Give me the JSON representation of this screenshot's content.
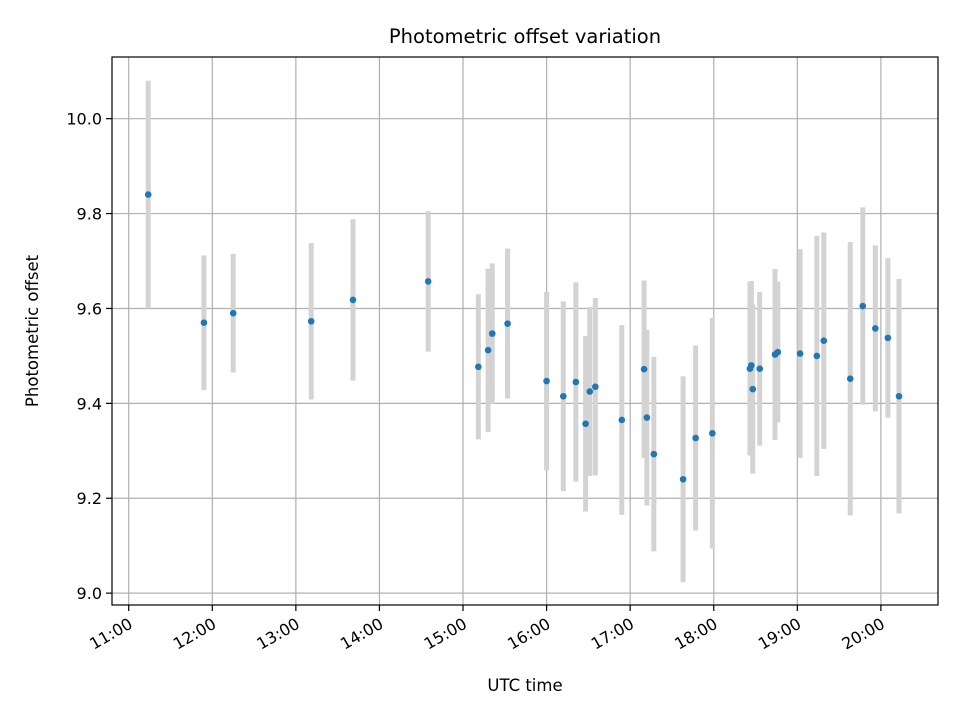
{
  "chart_data": {
    "type": "scatter",
    "title": "Photometric offset variation",
    "xlabel": "UTC time",
    "ylabel": "Photometric offset",
    "xlim": [
      "10:48",
      "20:41"
    ],
    "ylim": [
      8.975,
      10.13
    ],
    "x_ticks": [
      "11:00",
      "12:00",
      "13:00",
      "14:00",
      "15:00",
      "16:00",
      "17:00",
      "18:00",
      "19:00",
      "20:00"
    ],
    "y_ticks": [
      "9.0",
      "9.2",
      "9.4",
      "9.6",
      "9.8",
      "10.0"
    ],
    "grid": true,
    "colors": {
      "points": "#1f77b4",
      "errorbars": "#d3d3d3",
      "grid": "#b0b0b0"
    },
    "series": [
      {
        "points": [
          {
            "x": "11:14",
            "y": 9.84,
            "yerr": 0.24
          },
          {
            "x": "11:54",
            "y": 9.57,
            "yerr": 0.142
          },
          {
            "x": "12:15",
            "y": 9.59,
            "yerr": 0.125
          },
          {
            "x": "13:11",
            "y": 9.573,
            "yerr": 0.165
          },
          {
            "x": "13:41",
            "y": 9.618,
            "yerr": 0.17
          },
          {
            "x": "14:35",
            "y": 9.657,
            "yerr": 0.148
          },
          {
            "x": "15:11",
            "y": 9.477,
            "yerr": 0.153
          },
          {
            "x": "15:18",
            "y": 9.512,
            "yerr": 0.172
          },
          {
            "x": "15:21",
            "y": 9.547,
            "yerr": 0.148
          },
          {
            "x": "15:32",
            "y": 9.568,
            "yerr": 0.158
          },
          {
            "x": "16:00",
            "y": 9.447,
            "yerr": 0.188
          },
          {
            "x": "16:12",
            "y": 9.415,
            "yerr": 0.2
          },
          {
            "x": "16:21",
            "y": 9.445,
            "yerr": 0.21
          },
          {
            "x": "16:28",
            "y": 9.357,
            "yerr": 0.185
          },
          {
            "x": "16:31",
            "y": 9.425,
            "yerr": 0.178
          },
          {
            "x": "16:35",
            "y": 9.435,
            "yerr": 0.187
          },
          {
            "x": "16:54",
            "y": 9.365,
            "yerr": 0.2
          },
          {
            "x": "17:10",
            "y": 9.472,
            "yerr": 0.187
          },
          {
            "x": "17:12",
            "y": 9.37,
            "yerr": 0.185
          },
          {
            "x": "17:17",
            "y": 9.293,
            "yerr": 0.205
          },
          {
            "x": "17:38",
            "y": 9.24,
            "yerr": 0.217
          },
          {
            "x": "17:47",
            "y": 9.327,
            "yerr": 0.195
          },
          {
            "x": "17:59",
            "y": 9.337,
            "yerr": 0.243
          },
          {
            "x": "18:26",
            "y": 9.473,
            "yerr": 0.183
          },
          {
            "x": "18:27",
            "y": 9.48,
            "yerr": 0.178
          },
          {
            "x": "18:28",
            "y": 9.43,
            "yerr": 0.178
          },
          {
            "x": "18:33",
            "y": 9.473,
            "yerr": 0.162
          },
          {
            "x": "18:44",
            "y": 9.503,
            "yerr": 0.18
          },
          {
            "x": "18:46",
            "y": 9.508,
            "yerr": 0.148
          },
          {
            "x": "19:02",
            "y": 9.505,
            "yerr": 0.22
          },
          {
            "x": "19:14",
            "y": 9.5,
            "yerr": 0.253
          },
          {
            "x": "19:19",
            "y": 9.532,
            "yerr": 0.228
          },
          {
            "x": "19:38",
            "y": 9.452,
            "yerr": 0.288
          },
          {
            "x": "19:47",
            "y": 9.605,
            "yerr": 0.208
          },
          {
            "x": "19:56",
            "y": 9.558,
            "yerr": 0.175
          },
          {
            "x": "20:05",
            "y": 9.538,
            "yerr": 0.168
          },
          {
            "x": "20:13",
            "y": 9.415,
            "yerr": 0.247
          }
        ]
      }
    ]
  }
}
